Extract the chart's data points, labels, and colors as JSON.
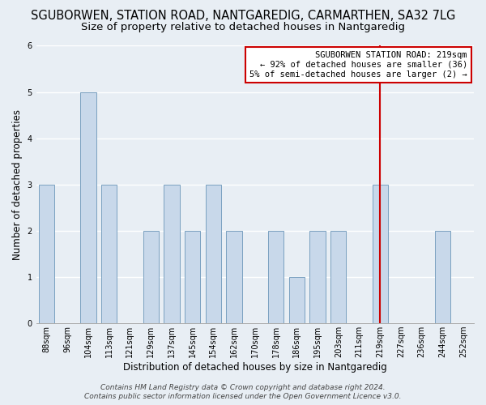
{
  "title": "SGUBORWEN, STATION ROAD, NANTGAREDIG, CARMARTHEN, SA32 7LG",
  "subtitle": "Size of property relative to detached houses in Nantgaredig",
  "xlabel": "Distribution of detached houses by size in Nantgaredig",
  "ylabel": "Number of detached properties",
  "bar_labels": [
    "88sqm",
    "96sqm",
    "104sqm",
    "113sqm",
    "121sqm",
    "129sqm",
    "137sqm",
    "145sqm",
    "154sqm",
    "162sqm",
    "170sqm",
    "178sqm",
    "186sqm",
    "195sqm",
    "203sqm",
    "211sqm",
    "219sqm",
    "227sqm",
    "236sqm",
    "244sqm",
    "252sqm"
  ],
  "bar_values": [
    3,
    0,
    5,
    3,
    0,
    2,
    3,
    2,
    3,
    2,
    0,
    2,
    1,
    2,
    2,
    0,
    3,
    0,
    0,
    2,
    0
  ],
  "bar_color": "#c8d8ea",
  "bar_edge_color": "#7aa0c0",
  "vline_x_index": 16,
  "vline_color": "#cc0000",
  "annotation_title": "SGUBORWEN STATION ROAD: 219sqm",
  "annotation_line1": "← 92% of detached houses are smaller (36)",
  "annotation_line2": "5% of semi-detached houses are larger (2) →",
  "annotation_box_facecolor": "#ffffff",
  "annotation_box_edgecolor": "#cc0000",
  "ylim": [
    0,
    6
  ],
  "yticks": [
    0,
    1,
    2,
    3,
    4,
    5,
    6
  ],
  "footer_line1": "Contains HM Land Registry data © Crown copyright and database right 2024.",
  "footer_line2": "Contains public sector information licensed under the Open Government Licence v3.0.",
  "bg_color": "#e8eef4",
  "plot_bg_color": "#e8eef4",
  "title_fontsize": 10.5,
  "subtitle_fontsize": 9.5,
  "axis_label_fontsize": 8.5,
  "tick_fontsize": 7,
  "annotation_fontsize": 7.5,
  "footer_fontsize": 6.5
}
